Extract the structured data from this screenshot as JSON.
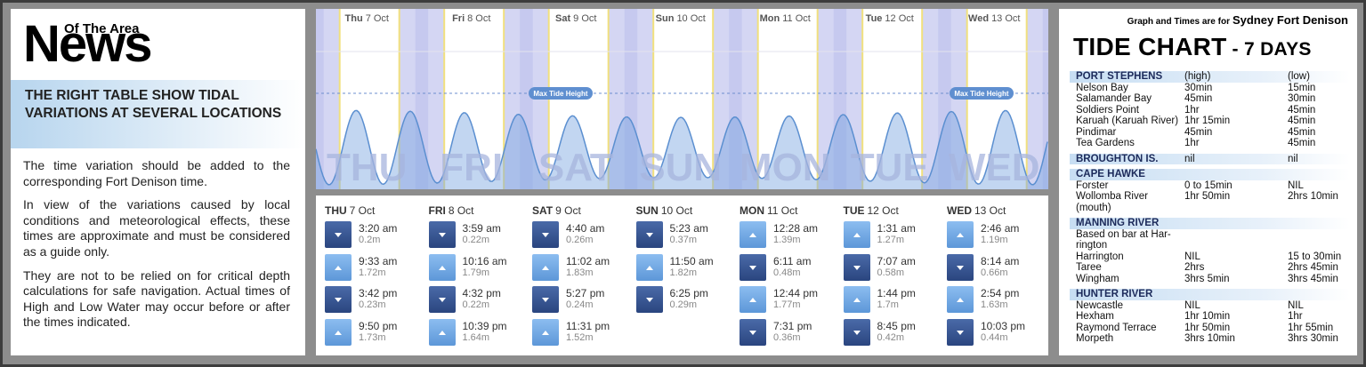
{
  "left": {
    "logo_top": "Of The Area",
    "logo_main": "News",
    "heading": "THE RIGHT TABLE SHOW TIDAL VARIATIONS AT SEVERAL LOCATIONS",
    "paragraphs": [
      "The time variation should be added to the corresponding Fort Denison time.",
      "In view of the variations caused by local conditions and meteorological effects, these times are approximate and must be considered as a guide only.",
      "They are not to be relied on for critical depth calculations for safe navigation. Actual times of High and Low Water may occur before or after the times indicated."
    ]
  },
  "graph": {
    "day_headers": [
      {
        "weekday": "Thu",
        "date": "7 Oct"
      },
      {
        "weekday": "Fri",
        "date": "8 Oct"
      },
      {
        "weekday": "Sat",
        "date": "9 Oct"
      },
      {
        "weekday": "Sun",
        "date": "10 Oct"
      },
      {
        "weekday": "Mon",
        "date": "11 Oct"
      },
      {
        "weekday": "Tue",
        "date": "12 Oct"
      },
      {
        "weekday": "Wed",
        "date": "13 Oct"
      }
    ],
    "day_labels": [
      "THU",
      "FRI",
      "SAT",
      "SUN",
      "MON",
      "TUE",
      "WED"
    ],
    "max_label": "Max Tide Height"
  },
  "tides": [
    {
      "weekday": "THU",
      "date": "7 Oct",
      "entries": [
        {
          "kind": "low",
          "time": "3:20 am",
          "height": "0.2m"
        },
        {
          "kind": "high",
          "time": "9:33 am",
          "height": "1.72m"
        },
        {
          "kind": "low",
          "time": "3:42 pm",
          "height": "0.23m"
        },
        {
          "kind": "high",
          "time": "9:50 pm",
          "height": "1.73m"
        }
      ]
    },
    {
      "weekday": "FRI",
      "date": "8 Oct",
      "entries": [
        {
          "kind": "low",
          "time": "3:59 am",
          "height": "0.22m"
        },
        {
          "kind": "high",
          "time": "10:16 am",
          "height": "1.79m"
        },
        {
          "kind": "low",
          "time": "4:32 pm",
          "height": "0.22m"
        },
        {
          "kind": "high",
          "time": "10:39 pm",
          "height": "1.64m"
        }
      ]
    },
    {
      "weekday": "SAT",
      "date": "9 Oct",
      "entries": [
        {
          "kind": "low",
          "time": "4:40 am",
          "height": "0.26m"
        },
        {
          "kind": "high",
          "time": "11:02 am",
          "height": "1.83m"
        },
        {
          "kind": "low",
          "time": "5:27 pm",
          "height": "0.24m"
        },
        {
          "kind": "high",
          "time": "11:31 pm",
          "height": "1.52m"
        }
      ]
    },
    {
      "weekday": "SUN",
      "date": "10 Oct",
      "entries": [
        {
          "kind": "low",
          "time": "5:23 am",
          "height": "0.37m"
        },
        {
          "kind": "high",
          "time": "11:50 am",
          "height": "1.82m"
        },
        {
          "kind": "low",
          "time": "6:25 pm",
          "height": "0.29m"
        }
      ]
    },
    {
      "weekday": "MON",
      "date": "11 Oct",
      "entries": [
        {
          "kind": "high",
          "time": "12:28 am",
          "height": "1.39m"
        },
        {
          "kind": "low",
          "time": "6:11 am",
          "height": "0.48m"
        },
        {
          "kind": "high",
          "time": "12:44 pm",
          "height": "1.77m"
        },
        {
          "kind": "low",
          "time": "7:31 pm",
          "height": "0.36m"
        }
      ]
    },
    {
      "weekday": "TUE",
      "date": "12 Oct",
      "entries": [
        {
          "kind": "high",
          "time": "1:31 am",
          "height": "1.27m"
        },
        {
          "kind": "low",
          "time": "7:07 am",
          "height": "0.58m"
        },
        {
          "kind": "high",
          "time": "1:44 pm",
          "height": "1.7m"
        },
        {
          "kind": "low",
          "time": "8:45 pm",
          "height": "0.42m"
        }
      ]
    },
    {
      "weekday": "WED",
      "date": "13 Oct",
      "entries": [
        {
          "kind": "high",
          "time": "2:46 am",
          "height": "1.19m"
        },
        {
          "kind": "low",
          "time": "8:14 am",
          "height": "0.66m"
        },
        {
          "kind": "high",
          "time": "2:54 pm",
          "height": "1.63m"
        },
        {
          "kind": "low",
          "time": "10:03 pm",
          "height": "0.44m"
        }
      ]
    }
  ],
  "right": {
    "note": "Graph and Times are for",
    "place": "Sydney Fort Denison",
    "title": "TIDE CHART",
    "subtitle": "- 7 DAYS",
    "sections": [
      {
        "name": "PORT STEPHENS",
        "high": "(high)",
        "low": "(low)",
        "rows": [
          {
            "name": "Nelson Bay",
            "high": "30min",
            "low": "15min"
          },
          {
            "name": "Salamander Bay",
            "high": "45min",
            "low": "30min"
          },
          {
            "name": "Soldiers Point",
            "high": "1hr",
            "low": "45min"
          },
          {
            "name": "Karuah (Karuah River)",
            "high": "1hr 15min",
            "low": "45min"
          },
          {
            "name": "Pindimar",
            "high": "45min",
            "low": "45min"
          },
          {
            "name": "Tea Gardens",
            "high": "1hr",
            "low": "45min"
          }
        ]
      },
      {
        "name": "BROUGHTON IS.",
        "high": "nil",
        "low": "nil",
        "rows": []
      },
      {
        "name": "CAPE HAWKE",
        "rows": [
          {
            "name": "Forster",
            "high": "0 to 15min",
            "low": "NIL"
          },
          {
            "name": "Wollomba River (mouth)",
            "high": "1hr 50min",
            "low": "2hrs 10min"
          }
        ]
      },
      {
        "name": "MANNING RIVER",
        "rows": [
          {
            "name": "Based on bar at Har-rington"
          },
          {
            "name": "Harrington",
            "high": "NIL",
            "low": "15 to 30min"
          },
          {
            "name": "Taree",
            "high": "2hrs",
            "low": "2hrs 45min"
          },
          {
            "name": "Wingham",
            "high": "3hrs 5min",
            "low": "3hrs 45min"
          }
        ]
      },
      {
        "name": "HUNTER RIVER",
        "rows": [
          {
            "name": "Newcastle",
            "high": "NIL",
            "low": "NIL"
          },
          {
            "name": "Hexham",
            "high": "1hr 10min",
            "low": "1hr"
          },
          {
            "name": "Raymond Terrace",
            "high": "1hr 50min",
            "low": "1hr 55min"
          },
          {
            "name": "Morpeth",
            "high": "3hrs 10min",
            "low": "3hrs 30min"
          }
        ]
      }
    ]
  }
}
